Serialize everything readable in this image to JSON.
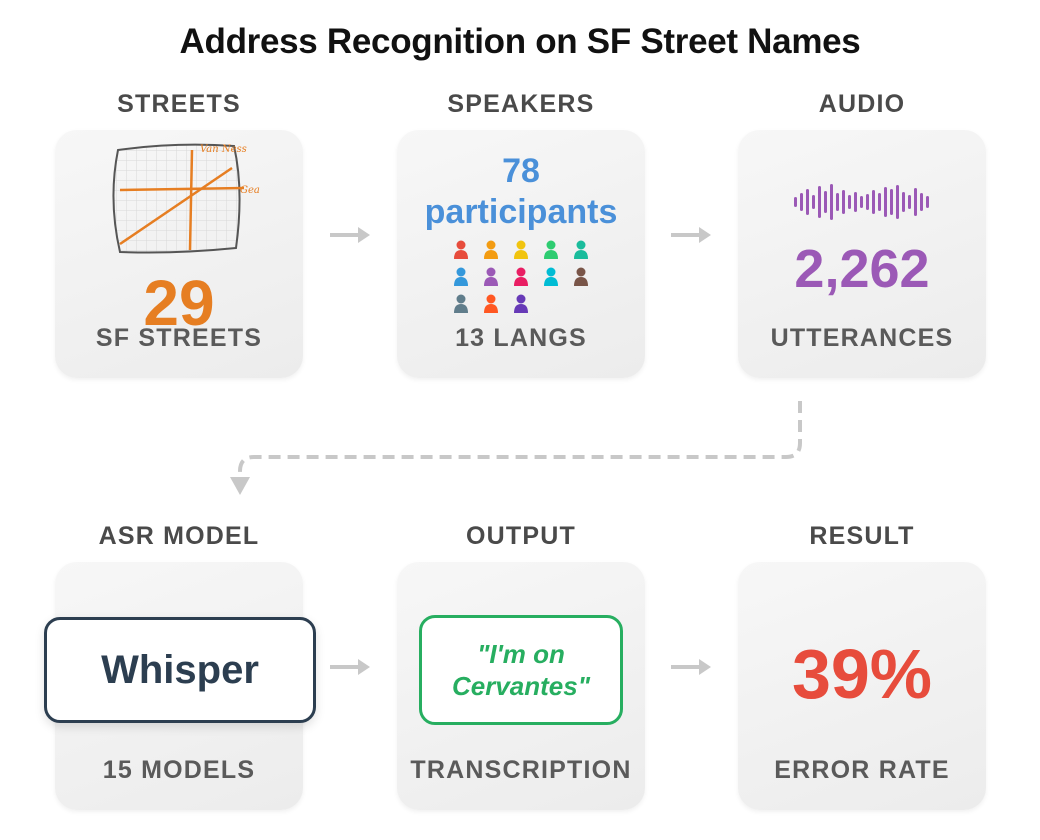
{
  "title": "Address Recognition on SF Street Names",
  "sections": {
    "streets": {
      "label": "STREETS",
      "value": "29",
      "sub": "SF STREETS",
      "map_labels": [
        "Van Ness",
        "Gea"
      ]
    },
    "speakers": {
      "label": "SPEAKERS",
      "value_line1": "78",
      "value_line2": "participants",
      "sub": "13 LANGS",
      "people_colors": [
        "#e74c3c",
        "#f39c12",
        "#f1c40f",
        "#2ecc71",
        "#1abc9c",
        "#3498db",
        "#9b59b6",
        "#e91e63",
        "#00bcd4",
        "#795548",
        "#607d8b",
        "#ff5722",
        "#673ab7"
      ]
    },
    "audio": {
      "label": "AUDIO",
      "value": "2,262",
      "sub": "UTTERANCES"
    },
    "asr_model": {
      "label": "ASR MODEL",
      "value": "Whisper",
      "sub": "15 MODELS"
    },
    "output": {
      "label": "OUTPUT",
      "value": "\"I'm on Cervantes\"",
      "sub": "TRANSCRIPTION"
    },
    "result": {
      "label": "RESULT",
      "value": "39%",
      "sub": "ERROR RATE"
    }
  },
  "colors": {
    "streets": "#e67e22",
    "speakers": "#4a90d9",
    "audio": "#9b59b6",
    "whisper": "#2c3e50",
    "output": "#27ae60",
    "result": "#e74c3c",
    "arrow": "#c8c8c8"
  },
  "icons": [
    "map-icon",
    "people-icon",
    "waveform-icon",
    "arrow-right-icon",
    "arrow-down-icon"
  ]
}
